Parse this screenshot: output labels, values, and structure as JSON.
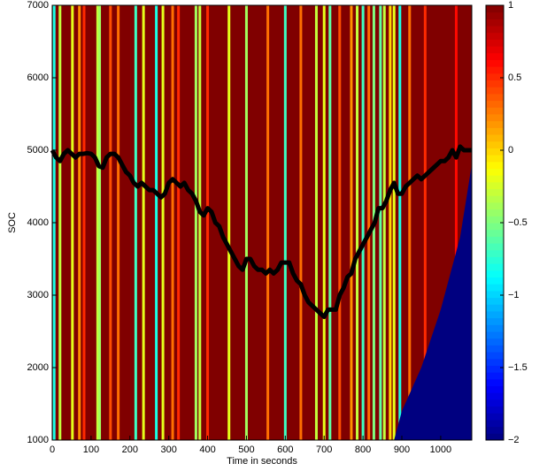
{
  "chart_data": {
    "type": "heatmap",
    "xlabel": "Time in seconds",
    "ylabel": "SOC",
    "xlim": [
      0,
      1080
    ],
    "ylim": [
      1000,
      7000
    ],
    "xticks": [
      0,
      100,
      200,
      300,
      400,
      500,
      600,
      700,
      800,
      900,
      1000
    ],
    "yticks": [
      1000,
      2000,
      3000,
      4000,
      5000,
      6000,
      7000
    ],
    "clim": [
      -2,
      1
    ],
    "cticks": [
      {
        "value": -2,
        "label": "−2"
      },
      {
        "value": -1.5,
        "label": "−1.5"
      },
      {
        "value": -1,
        "label": "−1"
      },
      {
        "value": -0.5,
        "label": "−0.5"
      },
      0,
      0.5,
      1
    ],
    "background_value": 1,
    "stripe_x": [
      5,
      20,
      52,
      70,
      82,
      117,
      122,
      150,
      170,
      215,
      235,
      268,
      285,
      310,
      325,
      370,
      380,
      400,
      455,
      500,
      555,
      600,
      640,
      680,
      700,
      715,
      740,
      770,
      785,
      800,
      815,
      828,
      845,
      855,
      870,
      880,
      895,
      920,
      960,
      1040
    ],
    "stripe_values": [
      -0.8,
      -0.3,
      -0.2,
      0.2,
      0.5,
      -0.3,
      -0.4,
      0.4,
      0.3,
      -0.7,
      -0.2,
      -0.8,
      -0.2,
      0.3,
      0.5,
      -0.4,
      -0.3,
      0.5,
      -0.2,
      -0.4,
      0.3,
      -0.7,
      0.3,
      -0.3,
      -0.2,
      -0.6,
      0.4,
      0.2,
      -0.3,
      -0.7,
      0.3,
      -0.5,
      -0.6,
      -0.3,
      0,
      -0.2,
      -0.8,
      0.3,
      0.5,
      0.6
    ],
    "low_region": {
      "x": [
        880,
        900,
        950,
        1000,
        1050,
        1080,
        1080
      ],
      "y": [
        1000,
        1400,
        2000,
        2800,
        3800,
        4800,
        1000
      ],
      "value": -2
    },
    "line": {
      "color": "#000000",
      "x": [
        0,
        10,
        20,
        30,
        40,
        50,
        60,
        70,
        80,
        90,
        100,
        110,
        120,
        130,
        140,
        150,
        160,
        170,
        180,
        190,
        200,
        210,
        220,
        230,
        240,
        250,
        260,
        270,
        280,
        290,
        300,
        310,
        320,
        330,
        340,
        350,
        360,
        370,
        380,
        390,
        400,
        410,
        420,
        430,
        440,
        450,
        460,
        470,
        480,
        490,
        500,
        510,
        520,
        530,
        540,
        550,
        560,
        570,
        580,
        590,
        600,
        610,
        620,
        630,
        640,
        650,
        660,
        670,
        680,
        690,
        700,
        710,
        720,
        730,
        740,
        750,
        760,
        770,
        780,
        790,
        800,
        810,
        820,
        830,
        840,
        850,
        860,
        870,
        880,
        890,
        900,
        910,
        920,
        930,
        940,
        950,
        960,
        970,
        980,
        990,
        1000,
        1010,
        1020,
        1030,
        1040,
        1050,
        1060,
        1080
      ],
      "y": [
        5000,
        4900,
        4850,
        4950,
        5000,
        4950,
        4900,
        4950,
        4950,
        4960,
        4950,
        4900,
        4780,
        4760,
        4900,
        4950,
        4950,
        4900,
        4800,
        4700,
        4650,
        4550,
        4500,
        4550,
        4500,
        4450,
        4450,
        4400,
        4350,
        4400,
        4550,
        4600,
        4550,
        4500,
        4550,
        4450,
        4400,
        4300,
        4150,
        4100,
        4200,
        4150,
        4000,
        3950,
        3800,
        3700,
        3600,
        3500,
        3400,
        3350,
        3500,
        3500,
        3400,
        3350,
        3350,
        3300,
        3350,
        3300,
        3350,
        3450,
        3450,
        3450,
        3300,
        3200,
        3150,
        3000,
        2900,
        2850,
        2800,
        2750,
        2700,
        2800,
        2800,
        2800,
        3000,
        3100,
        3250,
        3300,
        3500,
        3600,
        3700,
        3800,
        3900,
        4000,
        4200,
        4200,
        4300,
        4450,
        4550,
        4400,
        4400,
        4500,
        4550,
        4600,
        4650,
        4600,
        4650,
        4700,
        4750,
        4800,
        4850,
        4850,
        4900,
        5000,
        4900,
        5050,
        5000,
        5000
      ]
    }
  }
}
